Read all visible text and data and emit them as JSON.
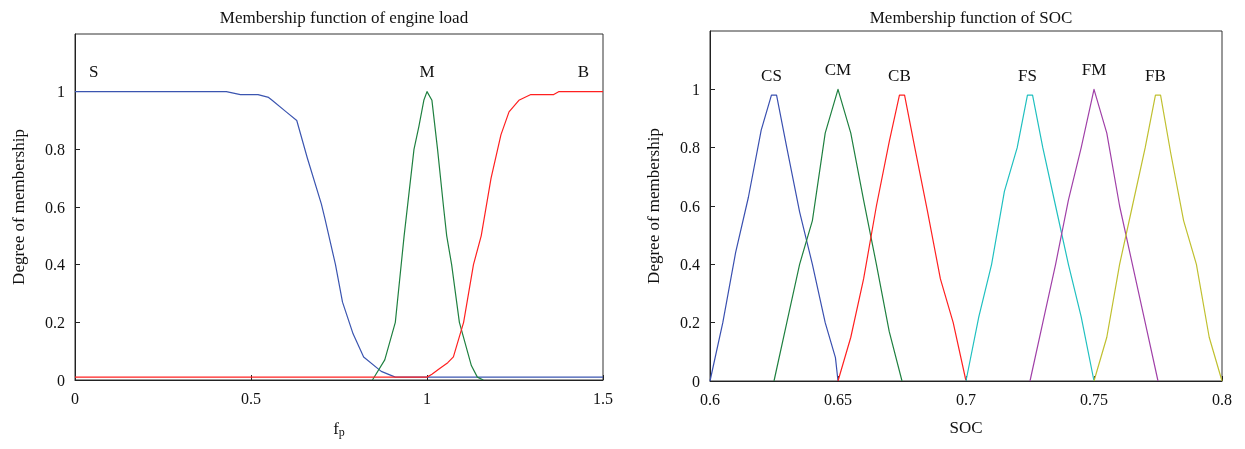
{
  "chart_data": [
    {
      "type": "line",
      "title": "Membership function of engine load",
      "xlabel": "f$_{p}$",
      "ylabel": "Degree of membership",
      "xlim": [
        0,
        1.5
      ],
      "xticks": [
        0,
        0.5,
        1,
        1.5
      ],
      "ylim": [
        0,
        1.2
      ],
      "yticks": [
        0,
        0.2,
        0.4,
        0.6,
        0.8,
        1
      ],
      "grid": false,
      "marker": "none",
      "line_style": "solid",
      "series": [
        {
          "name": "S",
          "color": "#3b55b0",
          "x": [
            0,
            0.43,
            0.47,
            0.52,
            0.55,
            0.56,
            0.6,
            0.63,
            0.66,
            0.7,
            0.71,
            0.74,
            0.76,
            0.79,
            0.82,
            0.87,
            0.91,
            1.5
          ],
          "values": [
            1,
            1,
            0.99,
            0.99,
            0.98,
            0.97,
            0.93,
            0.9,
            0.77,
            0.61,
            0.56,
            0.4,
            0.27,
            0.16,
            0.08,
            0.03,
            0.01,
            0.01
          ]
        },
        {
          "name": "M",
          "color": "#1f8040",
          "x": [
            0.845,
            0.855,
            0.88,
            0.91,
            0.935,
            0.963,
            0.977,
            0.991,
            1,
            1.014,
            1.03,
            1.047,
            1.056,
            1.07,
            1.092,
            1.126,
            1.143,
            1.16
          ],
          "values": [
            0,
            0.02,
            0.07,
            0.2,
            0.5,
            0.8,
            0.88,
            0.97,
            1,
            0.97,
            0.8,
            0.6,
            0.5,
            0.4,
            0.2,
            0.05,
            0.01,
            0
          ]
        },
        {
          "name": "B",
          "color": "#ff2020",
          "x": [
            0,
            1,
            1.014,
            1.036,
            1.059,
            1.075,
            1.104,
            1.132,
            1.154,
            1.182,
            1.21,
            1.233,
            1.261,
            1.295,
            1.36,
            1.374,
            1.5
          ],
          "values": [
            0.01,
            0.01,
            0.02,
            0.04,
            0.06,
            0.08,
            0.2,
            0.4,
            0.5,
            0.7,
            0.85,
            0.93,
            0.97,
            0.99,
            0.99,
            1,
            1
          ]
        }
      ]
    },
    {
      "type": "line",
      "title": "Membership function of SOC",
      "xlabel": "SOC",
      "ylabel": "Degree of membership",
      "xlim": [
        0.6,
        0.8
      ],
      "xticks": [
        0.6,
        0.65,
        0.7,
        0.75,
        0.8
      ],
      "ylim": [
        0,
        1.2
      ],
      "yticks": [
        0,
        0.2,
        0.4,
        0.6,
        0.8,
        1
      ],
      "grid": false,
      "marker": "none",
      "line_style": "solid",
      "series": [
        {
          "name": "CS",
          "color": "#3a50b0",
          "x": [
            0.6,
            0.605,
            0.61,
            0.615,
            0.62,
            0.624,
            0.626,
            0.63,
            0.635,
            0.64,
            0.645,
            0.649,
            0.65
          ],
          "values": [
            0,
            0.2,
            0.44,
            0.63,
            0.86,
            0.98,
            0.98,
            0.8,
            0.58,
            0.4,
            0.2,
            0.08,
            0
          ]
        },
        {
          "name": "CM",
          "color": "#1f8040",
          "x": [
            0.625,
            0.63,
            0.635,
            0.64,
            0.645,
            0.65,
            0.655,
            0.66,
            0.665,
            0.67,
            0.675
          ],
          "values": [
            0,
            0.2,
            0.4,
            0.55,
            0.85,
            1,
            0.85,
            0.62,
            0.4,
            0.17,
            0
          ]
        },
        {
          "name": "CB",
          "color": "#ff2020",
          "x": [
            0.65,
            0.655,
            0.66,
            0.665,
            0.67,
            0.674,
            0.676,
            0.68,
            0.685,
            0.69,
            0.695,
            0.7
          ],
          "values": [
            0,
            0.15,
            0.35,
            0.6,
            0.82,
            0.98,
            0.98,
            0.8,
            0.58,
            0.35,
            0.2,
            0
          ]
        },
        {
          "name": "FS",
          "color": "#20c0c0",
          "x": [
            0.7,
            0.705,
            0.71,
            0.715,
            0.72,
            0.724,
            0.726,
            0.73,
            0.735,
            0.74,
            0.745,
            0.75
          ],
          "values": [
            0,
            0.22,
            0.4,
            0.65,
            0.8,
            0.98,
            0.98,
            0.8,
            0.6,
            0.4,
            0.22,
            0
          ]
        },
        {
          "name": "FM",
          "color": "#a040a8",
          "x": [
            0.725,
            0.73,
            0.735,
            0.74,
            0.745,
            0.75,
            0.755,
            0.76,
            0.765,
            0.77,
            0.775
          ],
          "values": [
            0,
            0.2,
            0.4,
            0.62,
            0.8,
            1,
            0.85,
            0.6,
            0.4,
            0.2,
            0
          ]
        },
        {
          "name": "FB",
          "color": "#c0c030",
          "x": [
            0.75,
            0.755,
            0.76,
            0.765,
            0.77,
            0.774,
            0.776,
            0.78,
            0.785,
            0.79,
            0.795,
            0.8
          ],
          "values": [
            0,
            0.15,
            0.4,
            0.6,
            0.8,
            0.98,
            0.98,
            0.78,
            0.55,
            0.4,
            0.15,
            0
          ]
        }
      ]
    }
  ]
}
